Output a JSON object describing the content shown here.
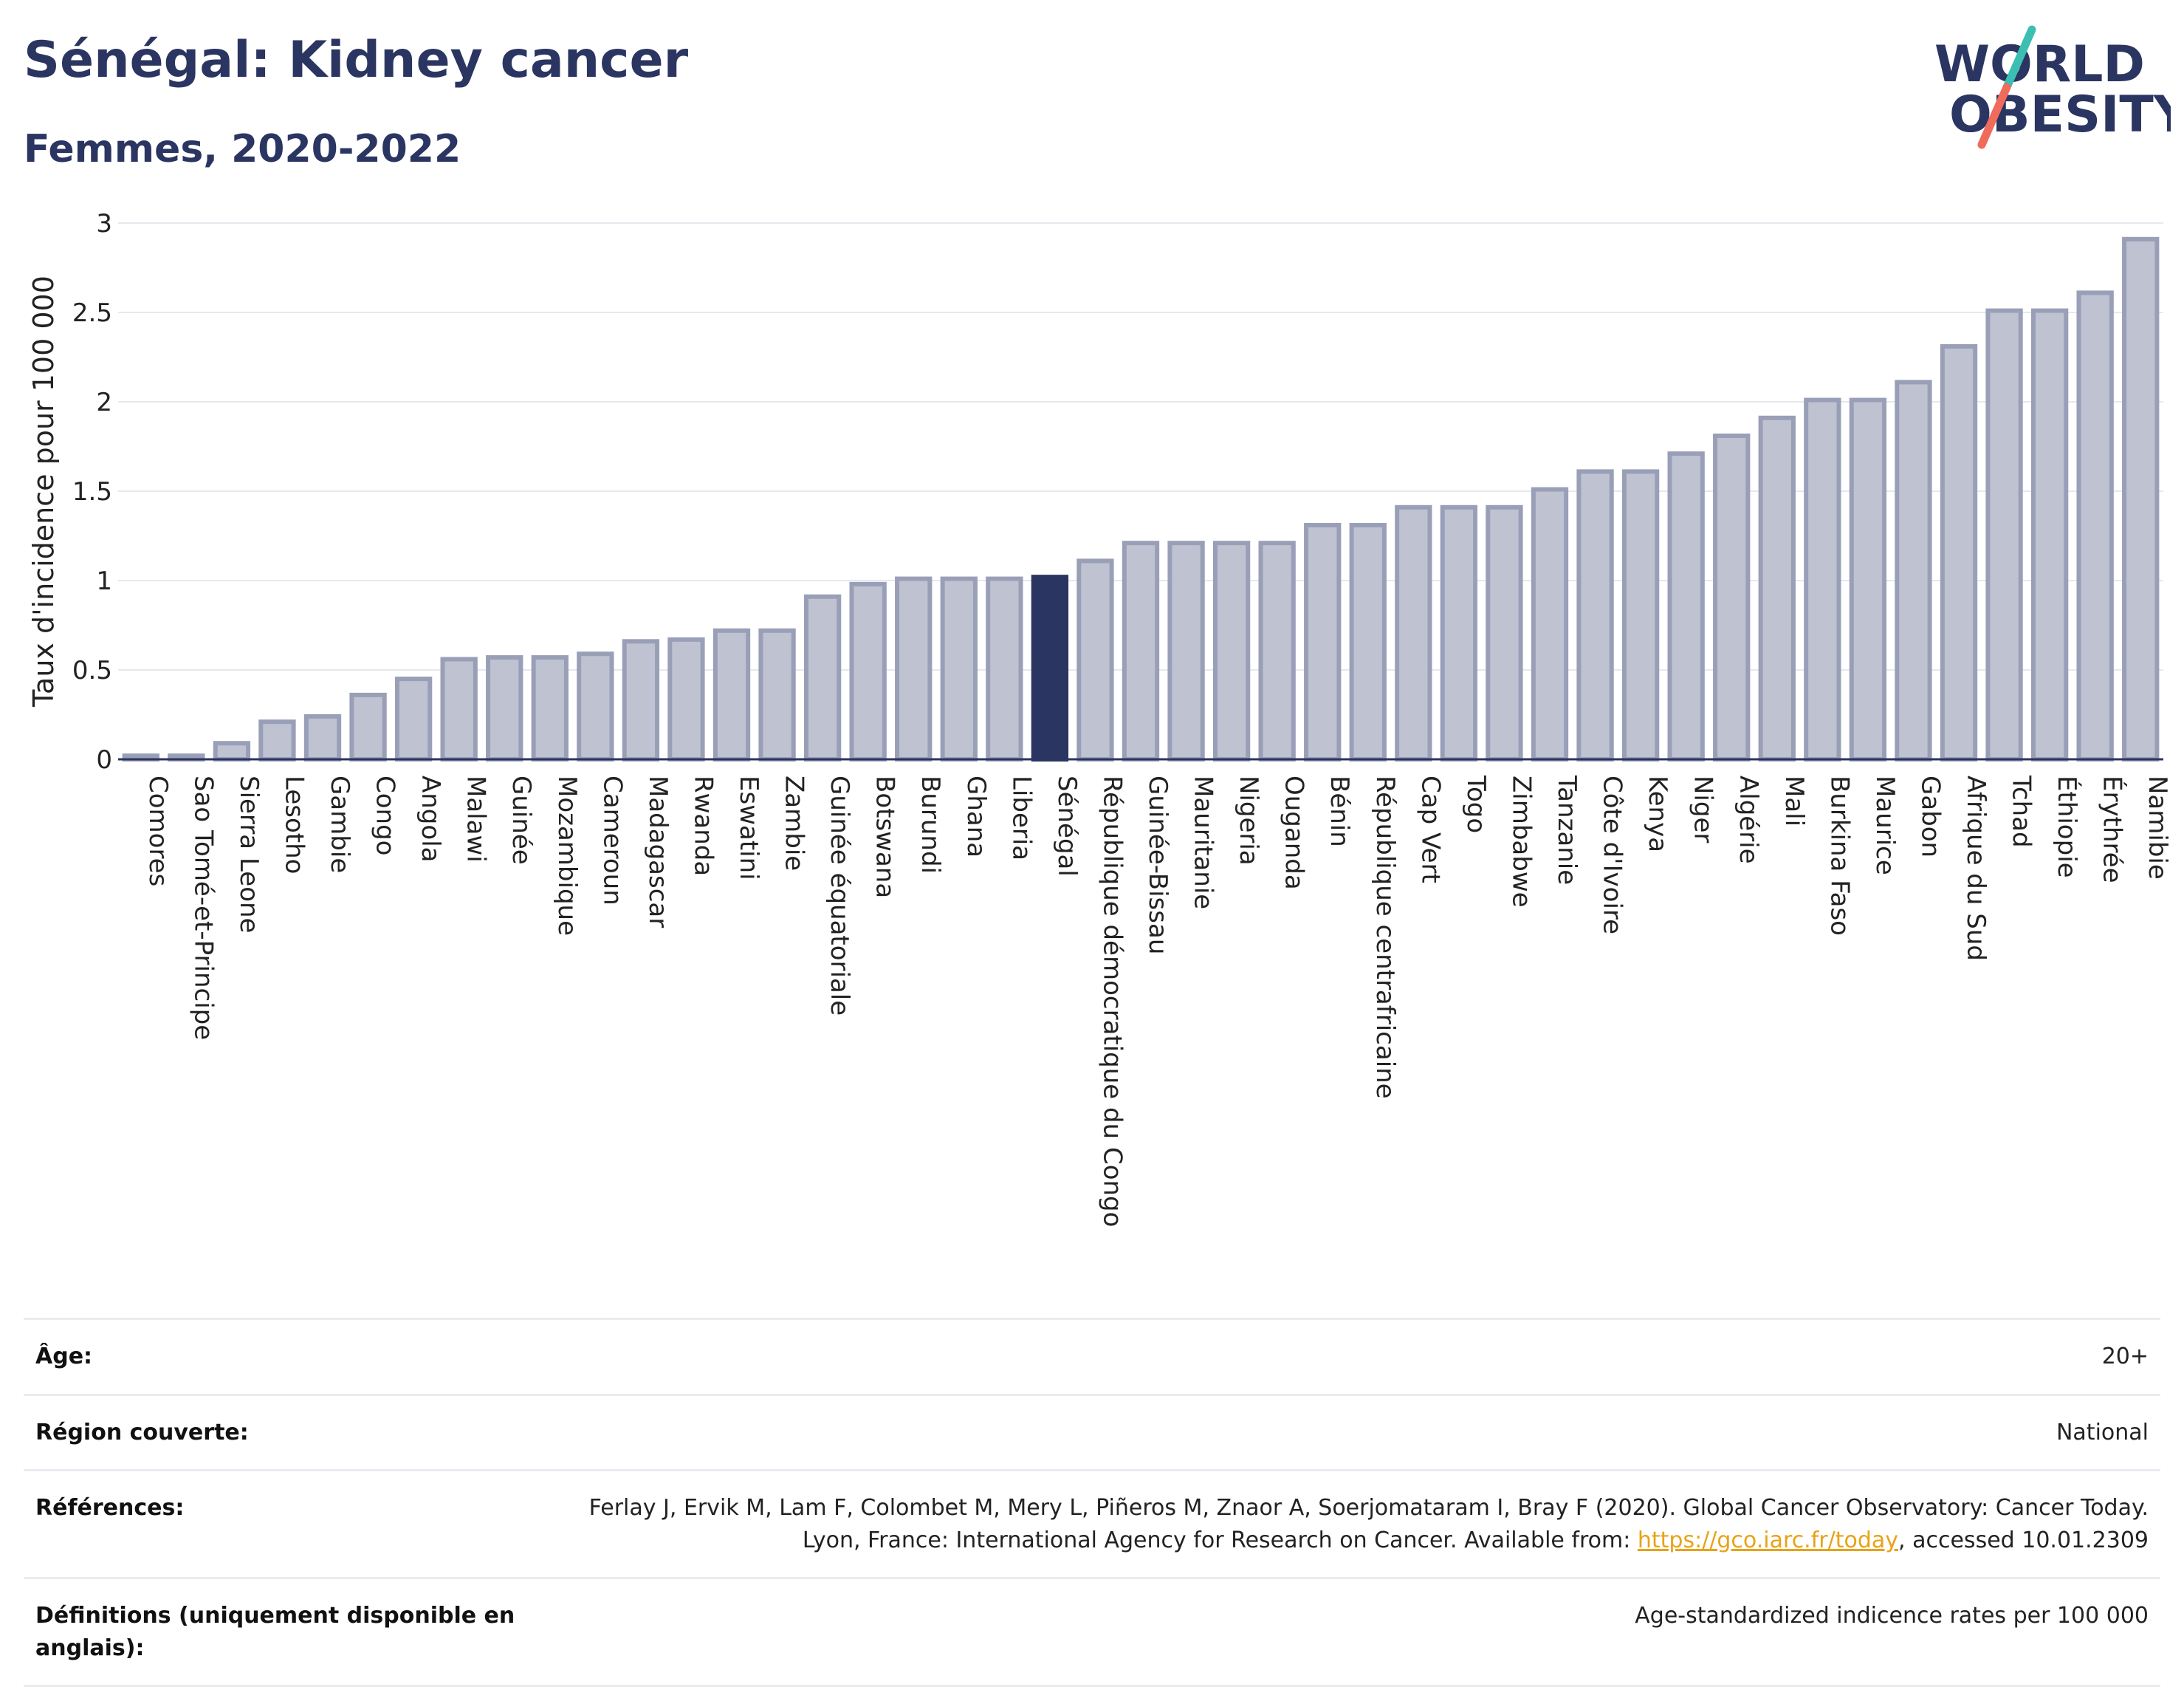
{
  "header": {
    "title": "Sénégal: Kidney cancer",
    "subtitle": "Femmes, 2020-2022"
  },
  "logo": {
    "line1": "WORLD",
    "line2": "OBESITY"
  },
  "chart_data": {
    "type": "bar",
    "ylabel": "Taux d'incidence pour 100 000",
    "ylim": [
      0,
      3
    ],
    "yticks": [
      0,
      0.5,
      1,
      1.5,
      2,
      2.5,
      3
    ],
    "grid": true,
    "highlight": "Sénégal",
    "colors": {
      "bar": "#bfc2d0",
      "bar_edge": "#9a9fb8",
      "highlight": "#2b3561"
    },
    "categories": [
      "Comores",
      "Sao Tomé-et-Principe",
      "Sierra Leone",
      "Lesotho",
      "Gambie",
      "Congo",
      "Angola",
      "Malawi",
      "Guinée",
      "Mozambique",
      "Cameroun",
      "Madagascar",
      "Rwanda",
      "Eswatini",
      "Zambie",
      "Guinée équatoriale",
      "Botswana",
      "Burundi",
      "Ghana",
      "Liberia",
      "Sénégal",
      "République démocratique du Congo",
      "Guinée-Bissau",
      "Mauritanie",
      "Nigeria",
      "Ouganda",
      "Bénin",
      "République centrafricaine",
      "Cap Vert",
      "Togo",
      "Zimbabwe",
      "Tanzanie",
      "Côte d'Ivoire",
      "Kenya",
      "Niger",
      "Algérie",
      "Mali",
      "Burkina Faso",
      "Maurice",
      "Gabon",
      "Afrique du Sud",
      "Tchad",
      "Éthiopie",
      "Érythrée",
      "Namibie"
    ],
    "values": [
      0.02,
      0.02,
      0.09,
      0.21,
      0.24,
      0.36,
      0.45,
      0.56,
      0.57,
      0.57,
      0.59,
      0.66,
      0.67,
      0.72,
      0.72,
      0.91,
      0.98,
      1.01,
      1.01,
      1.01,
      1.02,
      1.11,
      1.21,
      1.21,
      1.21,
      1.21,
      1.31,
      1.31,
      1.41,
      1.41,
      1.41,
      1.51,
      1.61,
      1.61,
      1.71,
      1.81,
      1.91,
      2.01,
      2.01,
      2.11,
      2.31,
      2.51,
      2.51,
      2.61,
      2.91
    ]
  },
  "info": {
    "rows": [
      {
        "key": "Âge:",
        "value": "20+"
      },
      {
        "key": "Région couverte:",
        "value": "National"
      },
      {
        "key": "Références:",
        "value_pre": "Ferlay J, Ervik M, Lam F, Colombet M, Mery L, Piñeros M, Znaor A, Soerjomataram I, Bray F (2020). Global Cancer Observatory: Cancer Today. Lyon, France: International Agency for Research on Cancer. Available from: ",
        "link": "https://gco.iarc.fr/today",
        "value_post": ", accessed 10.01.2309"
      },
      {
        "key": "Définitions (uniquement disponible en anglais):",
        "value": "Age-standardized indicence rates per 100 000"
      }
    ]
  }
}
